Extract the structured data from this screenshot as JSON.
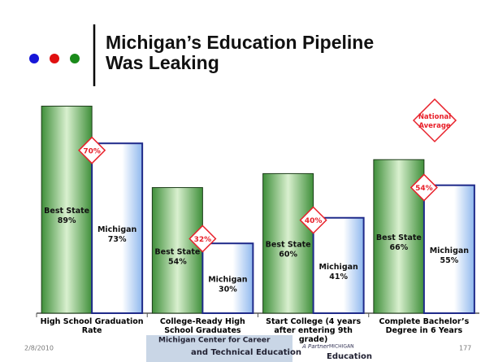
{
  "title": "Michigan’s Education Pipeline Was Leaking",
  "chart_data": {
    "type": "bar",
    "categories": [
      "High School Graduation Rate",
      "College-Ready High School Graduates",
      "Start College (4 years after entering 9th grade)",
      "Complete Bachelor’s Degree in 6 Years"
    ],
    "series": [
      {
        "name": "Best State",
        "color": "#3f8f3a",
        "values": [
          89,
          54,
          60,
          66
        ],
        "value_labels": [
          "89%",
          "54%",
          "60%",
          "66%"
        ]
      },
      {
        "name": "Michigan",
        "color": "#1f2a8a",
        "values": [
          73,
          30,
          41,
          55
        ],
        "value_labels": [
          "73%",
          "30%",
          "41%",
          "55%"
        ]
      },
      {
        "name": "National Average",
        "color": "#e8202a",
        "marker": "diamond",
        "values": [
          70,
          32,
          40,
          54
        ],
        "value_labels": [
          "70%",
          "32%",
          "40%",
          "54%"
        ]
      }
    ],
    "ylim": [
      0,
      100
    ]
  },
  "footer": {
    "date": "2/8/2010",
    "page": "177",
    "logo_lines": [
      "Michigan Center for Career",
      "and Technical Education",
      "A Partner",
      "MICHIGAN",
      "Education"
    ]
  }
}
